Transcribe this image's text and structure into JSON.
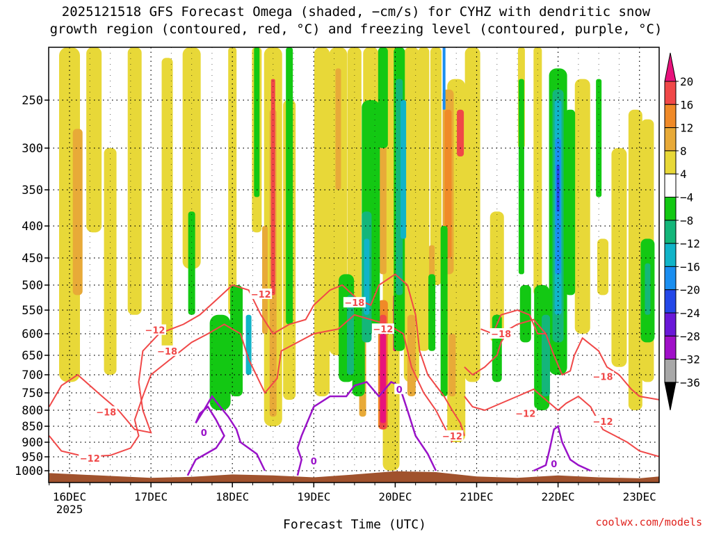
{
  "title": {
    "line1": "2025121518 GFS Forecast Omega (shaded, −cm/s) for CYHZ with dendritic snow",
    "line2": "growth region (contoured, red, °C) and freezing level (contoured, purple, °C)"
  },
  "credit": "coolwx.com/models",
  "chart_data": {
    "type": "heatmap",
    "title": "2025121518 GFS Forecast Omega (shaded, −cm/s) for CYHZ with dendritic snow growth region (contoured, red, °C) and freezing level (contoured, purple, °C)",
    "xlabel": "Forecast Time (UTC)",
    "ylabel": "",
    "x_ticks": [
      "16DEC",
      "17DEC",
      "18DEC",
      "19DEC",
      "20DEC",
      "21DEC",
      "22DEC",
      "23DEC"
    ],
    "x_tick_sub": "2025",
    "x_range_days": [
      15.75,
      23.25
    ],
    "y_ticks": [
      250,
      300,
      350,
      400,
      450,
      500,
      550,
      600,
      650,
      700,
      750,
      800,
      850,
      900,
      950,
      1000
    ],
    "y_range_hpa": [
      1025,
      200
    ],
    "grid": true,
    "colorbar": {
      "labels": [
        "20",
        "16",
        "12",
        "8",
        "4",
        "−4",
        "−8",
        "−12",
        "−16",
        "−20",
        "−24",
        "−28",
        "−32",
        "−36"
      ],
      "colors": [
        "#e8127c",
        "#f04848",
        "#f08a28",
        "#e8aa38",
        "#e8d838",
        "#ffffff",
        "#13c813",
        "#14b67a",
        "#11b4c8",
        "#1a8ef0",
        "#2448e8",
        "#6a18d8",
        "#a010c8",
        "#a8a8a8",
        "#000000"
      ]
    },
    "contours": {
      "dendritic_labels": [
        "−12",
        "−12",
        "−18",
        "−12",
        "−18",
        "−18",
        "−12",
        "−18",
        "−12",
        "−12",
        "−18",
        "−12"
      ],
      "freezing_labels": [
        "0",
        "0",
        "0",
        "0"
      ],
      "dendritic_color": "#f04848",
      "freezing_color": "#9912c8"
    },
    "terrain_color": "#a0522d"
  }
}
